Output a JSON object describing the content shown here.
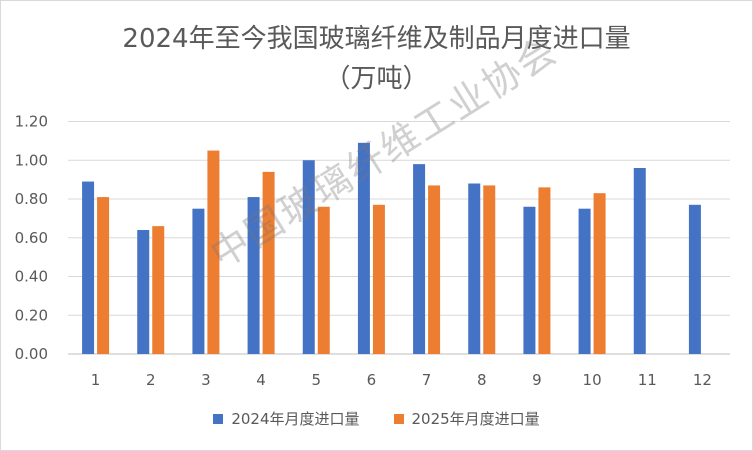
{
  "chart_data": {
    "type": "bar",
    "title_line1": "2024年至今我国玻璃纤维及制品月度进口量",
    "title_line2": "（万吨）",
    "categories": [
      "1",
      "2",
      "3",
      "4",
      "5",
      "6",
      "7",
      "8",
      "9",
      "10",
      "11",
      "12"
    ],
    "series": [
      {
        "name": "2024年月度进口量",
        "color": "#4472C4",
        "values": [
          0.89,
          0.64,
          0.75,
          0.81,
          1.0,
          1.09,
          0.98,
          0.88,
          0.76,
          0.75,
          0.96,
          0.77
        ]
      },
      {
        "name": "2025年月度进口量",
        "color": "#ED7D31",
        "values": [
          0.81,
          0.66,
          1.05,
          0.94,
          0.76,
          0.77,
          0.87,
          0.87,
          0.86,
          0.83,
          null,
          null
        ]
      }
    ],
    "ylim": [
      0,
      1.2
    ],
    "yticks": [
      "0.00",
      "0.20",
      "0.40",
      "0.60",
      "0.80",
      "1.00",
      "1.20"
    ],
    "grid": true,
    "legend_position": "bottom",
    "watermark": "中国玻璃纤维工业协会"
  }
}
